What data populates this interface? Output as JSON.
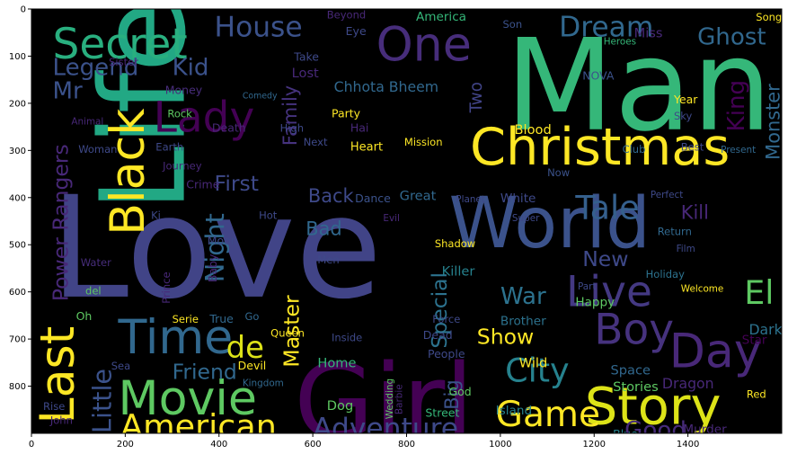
{
  "chart_data": {
    "type": "wordcloud",
    "title": "",
    "xlabel": "",
    "ylabel": "",
    "xlim": [
      0,
      1600
    ],
    "ylim": [
      900,
      0
    ],
    "x_ticks": [
      0,
      200,
      400,
      600,
      800,
      1000,
      1200,
      1400
    ],
    "y_ticks": [
      0,
      100,
      200,
      300,
      400,
      500,
      600,
      700,
      800
    ],
    "background": "#000000",
    "palette": "viridis",
    "words": [
      {
        "text": "Love",
        "x": 40,
        "y": 610,
        "size": 300,
        "color": "#414487"
      },
      {
        "text": "Man",
        "x": 1010,
        "y": 255,
        "size": 270,
        "color": "#35b779"
      },
      {
        "text": "Life",
        "x": 215,
        "y": 320,
        "size": 250,
        "color": "#22a884",
        "rotate": -90,
        "ax": 325,
        "ay": 430
      },
      {
        "text": "Girl",
        "x": 560,
        "y": 910,
        "size": 220,
        "color": "#440154"
      },
      {
        "text": "World",
        "x": 890,
        "y": 505,
        "size": 150,
        "color": "#3b528b"
      },
      {
        "text": "Christmas",
        "x": 935,
        "y": 330,
        "size": 110,
        "color": "#fde725"
      },
      {
        "text": "Story",
        "x": 1180,
        "y": 880,
        "size": 110,
        "color": "#dde318"
      },
      {
        "text": "Time",
        "x": 185,
        "y": 730,
        "size": 100,
        "color": "#31688e"
      },
      {
        "text": "Movie",
        "x": 185,
        "y": 860,
        "size": 100,
        "color": "#5ec962"
      },
      {
        "text": "Day",
        "x": 1360,
        "y": 760,
        "size": 100,
        "color": "#482878"
      },
      {
        "text": "One",
        "x": 735,
        "y": 110,
        "size": 100,
        "color": "#472d7b"
      },
      {
        "text": "Black",
        "x": 210,
        "y": 480,
        "size": 100,
        "color": "#fde725",
        "rotate": -90,
        "ax": 240,
        "ay": 480
      },
      {
        "text": "Last",
        "x": 55,
        "y": 880,
        "size": 100,
        "color": "#fde725",
        "rotate": -90,
        "ax": 90,
        "ay": 880
      },
      {
        "text": "Secret",
        "x": 45,
        "y": 105,
        "size": 90,
        "color": "#29af7f"
      },
      {
        "text": "Live",
        "x": 1140,
        "y": 630,
        "size": 90,
        "color": "#443983"
      },
      {
        "text": "Boy",
        "x": 1200,
        "y": 710,
        "size": 90,
        "color": "#46327e"
      },
      {
        "text": "Game",
        "x": 990,
        "y": 885,
        "size": 75,
        "color": "#fde725"
      },
      {
        "text": "American",
        "x": 190,
        "y": 910,
        "size": 70,
        "color": "#fde725"
      },
      {
        "text": "City",
        "x": 1010,
        "y": 790,
        "size": 70,
        "color": "#26828e"
      },
      {
        "text": "Tale",
        "x": 1160,
        "y": 445,
        "size": 70,
        "color": "#35608d"
      },
      {
        "text": "Adventure",
        "x": 600,
        "y": 910,
        "size": 60,
        "color": "#3e4989"
      },
      {
        "text": "House",
        "x": 390,
        "y": 58,
        "size": 60,
        "color": "#3b528b"
      },
      {
        "text": "Dream",
        "x": 1125,
        "y": 58,
        "size": 60,
        "color": "#31688e"
      },
      {
        "text": "El",
        "x": 1520,
        "y": 625,
        "size": 70,
        "color": "#5ec962"
      },
      {
        "text": "de",
        "x": 415,
        "y": 740,
        "size": 65,
        "color": "#dde318"
      },
      {
        "text": "Ghost",
        "x": 1420,
        "y": 75,
        "size": 50,
        "color": "#31688e"
      },
      {
        "text": "Good",
        "x": 1265,
        "y": 910,
        "size": 50,
        "color": "#472c7a"
      },
      {
        "text": "Lady",
        "x": 260,
        "y": 260,
        "size": 90,
        "color": "#440154"
      },
      {
        "text": "Kid",
        "x": 300,
        "y": 140,
        "size": 50,
        "color": "#3b528b"
      },
      {
        "text": "Legend",
        "x": 45,
        "y": 140,
        "size": 50,
        "color": "#3b528b"
      },
      {
        "text": "Mr",
        "x": 45,
        "y": 190,
        "size": 50,
        "color": "#3b528b"
      },
      {
        "text": "Friend",
        "x": 300,
        "y": 785,
        "size": 45,
        "color": "#31688e"
      },
      {
        "text": "War",
        "x": 1000,
        "y": 625,
        "size": 50,
        "color": "#2c728e"
      },
      {
        "text": "Show",
        "x": 950,
        "y": 710,
        "size": 45,
        "color": "#fde725"
      },
      {
        "text": "New",
        "x": 1175,
        "y": 545,
        "size": 45,
        "color": "#3e4989"
      },
      {
        "text": "First",
        "x": 390,
        "y": 385,
        "size": 45,
        "color": "#3e4989"
      },
      {
        "text": "Bad",
        "x": 585,
        "y": 480,
        "size": 40,
        "color": "#31688e"
      },
      {
        "text": "Kill",
        "x": 1385,
        "y": 445,
        "size": 40,
        "color": "#482878"
      },
      {
        "text": "Dark",
        "x": 1530,
        "y": 690,
        "size": 30,
        "color": "#2c728e"
      },
      {
        "text": "Chhota Bheem",
        "x": 645,
        "y": 175,
        "size": 30,
        "color": "#31688e"
      },
      {
        "text": "King",
        "x": 1480,
        "y": 260,
        "size": 50,
        "color": "#440154",
        "rotate": -90,
        "ax": 1520,
        "ay": 260
      },
      {
        "text": "Monster",
        "x": 1565,
        "y": 320,
        "size": 40,
        "color": "#31688e",
        "rotate": -90,
        "ax": 1595,
        "ay": 320
      },
      {
        "text": "Night",
        "x": 380,
        "y": 580,
        "size": 55,
        "color": "#31688e",
        "rotate": -90,
        "ax": 410,
        "ay": 580
      },
      {
        "text": "Little",
        "x": 140,
        "y": 900,
        "size": 55,
        "color": "#3b528b",
        "rotate": -90,
        "ax": 170,
        "ay": 900
      },
      {
        "text": "Power Rangers",
        "x": 58,
        "y": 620,
        "size": 45,
        "color": "#482878",
        "rotate": -90,
        "ax": 78,
        "ay": 620
      },
      {
        "text": "Master",
        "x": 545,
        "y": 760,
        "size": 45,
        "color": "#fde725",
        "rotate": -90,
        "ax": 570,
        "ay": 760
      },
      {
        "text": "Special",
        "x": 860,
        "y": 720,
        "size": 45,
        "color": "#2c728e",
        "rotate": -90,
        "ax": 885,
        "ay": 720
      },
      {
        "text": "Big",
        "x": 885,
        "y": 850,
        "size": 40,
        "color": "#3b528b",
        "rotate": -90,
        "ax": 910,
        "ay": 850
      },
      {
        "text": "Two",
        "x": 940,
        "y": 220,
        "size": 35,
        "color": "#414487",
        "rotate": -90,
        "ax": 960,
        "ay": 220
      },
      {
        "text": "Family",
        "x": 545,
        "y": 290,
        "size": 40,
        "color": "#46337f",
        "rotate": -90,
        "ax": 565,
        "ay": 290
      },
      {
        "text": "Back",
        "x": 590,
        "y": 410,
        "size": 40,
        "color": "#3e4989"
      },
      {
        "text": "Tale",
        "x": 0,
        "y": 0,
        "size": 0,
        "color": "#000000"
      },
      {
        "text": "Heart",
        "x": 680,
        "y": 300,
        "size": 25,
        "color": "#fde725"
      },
      {
        "text": "Great",
        "x": 785,
        "y": 405,
        "size": 28,
        "color": "#31688e"
      },
      {
        "text": "Blood",
        "x": 1030,
        "y": 265,
        "size": 28,
        "color": "#fde725"
      },
      {
        "text": "Killer",
        "x": 875,
        "y": 565,
        "size": 28,
        "color": "#26828e"
      },
      {
        "text": "Happy",
        "x": 1160,
        "y": 630,
        "size": 26,
        "color": "#5ec962"
      },
      {
        "text": "Brother",
        "x": 1000,
        "y": 670,
        "size": 26,
        "color": "#2c728e"
      },
      {
        "text": "Island",
        "x": 990,
        "y": 860,
        "size": 26,
        "color": "#26828e"
      },
      {
        "text": "Dragon",
        "x": 1345,
        "y": 805,
        "size": 30,
        "color": "#482878"
      },
      {
        "text": "Space",
        "x": 1235,
        "y": 775,
        "size": 28,
        "color": "#31688e"
      },
      {
        "text": "Stories",
        "x": 1240,
        "y": 810,
        "size": 28,
        "color": "#5ec962"
      },
      {
        "text": "Home",
        "x": 610,
        "y": 760,
        "size": 28,
        "color": "#35b779"
      },
      {
        "text": "Dog",
        "x": 630,
        "y": 850,
        "size": 28,
        "color": "#5ec962"
      },
      {
        "text": "Wild",
        "x": 1040,
        "y": 760,
        "size": 28,
        "color": "#fde725"
      },
      {
        "text": "People",
        "x": 845,
        "y": 740,
        "size": 24,
        "color": "#3e4989"
      },
      {
        "text": "Dead",
        "x": 835,
        "y": 700,
        "size": 24,
        "color": "#3e4989"
      },
      {
        "text": "Force",
        "x": 855,
        "y": 665,
        "size": 22,
        "color": "#3e4989"
      },
      {
        "text": "Journey",
        "x": 280,
        "y": 340,
        "size": 22,
        "color": "#482878"
      },
      {
        "text": "Crime",
        "x": 330,
        "y": 380,
        "size": 24,
        "color": "#482878"
      },
      {
        "text": "Earth",
        "x": 265,
        "y": 300,
        "size": 22,
        "color": "#3e4989"
      },
      {
        "text": "Death",
        "x": 385,
        "y": 260,
        "size": 24,
        "color": "#482878"
      },
      {
        "text": "Money",
        "x": 285,
        "y": 180,
        "size": 24,
        "color": "#472c7a"
      },
      {
        "text": "Party",
        "x": 640,
        "y": 230,
        "size": 24,
        "color": "#fde725"
      },
      {
        "text": "High",
        "x": 530,
        "y": 260,
        "size": 22,
        "color": "#3e4989"
      },
      {
        "text": "Mission",
        "x": 795,
        "y": 290,
        "size": 22,
        "color": "#fde725"
      },
      {
        "text": "Lost",
        "x": 555,
        "y": 145,
        "size": 28,
        "color": "#482878"
      },
      {
        "text": "Take",
        "x": 560,
        "y": 110,
        "size": 24,
        "color": "#3e4989"
      },
      {
        "text": "Eye",
        "x": 670,
        "y": 55,
        "size": 24,
        "color": "#3e4989"
      },
      {
        "text": "America",
        "x": 820,
        "y": 25,
        "size": 26,
        "color": "#35b779"
      },
      {
        "text": "Beyond",
        "x": 630,
        "y": 20,
        "size": 22,
        "color": "#482878"
      },
      {
        "text": "Miss",
        "x": 1285,
        "y": 60,
        "size": 28,
        "color": "#482878"
      },
      {
        "text": "Song",
        "x": 1545,
        "y": 25,
        "size": 22,
        "color": "#fde725"
      },
      {
        "text": "Heroes",
        "x": 1220,
        "y": 75,
        "size": 20,
        "color": "#35b779"
      },
      {
        "text": "NOVA",
        "x": 1175,
        "y": 150,
        "size": 24,
        "color": "#3b528b"
      },
      {
        "text": "Year",
        "x": 1370,
        "y": 200,
        "size": 24,
        "color": "#fde725"
      },
      {
        "text": "Sky",
        "x": 1370,
        "y": 235,
        "size": 22,
        "color": "#3e4989"
      },
      {
        "text": "Best",
        "x": 1385,
        "y": 300,
        "size": 22,
        "color": "#3e4989"
      },
      {
        "text": "Present",
        "x": 1470,
        "y": 305,
        "size": 20,
        "color": "#31688e"
      },
      {
        "text": "Club",
        "x": 1260,
        "y": 305,
        "size": 22,
        "color": "#31688e"
      },
      {
        "text": "Return",
        "x": 1335,
        "y": 480,
        "size": 22,
        "color": "#31688e"
      },
      {
        "text": "Film",
        "x": 1375,
        "y": 515,
        "size": 20,
        "color": "#3e4989"
      },
      {
        "text": "Holiday",
        "x": 1310,
        "y": 570,
        "size": 22,
        "color": "#2c728e"
      },
      {
        "text": "Welcome",
        "x": 1385,
        "y": 600,
        "size": 20,
        "color": "#fde725"
      },
      {
        "text": "Perfect",
        "x": 1320,
        "y": 400,
        "size": 20,
        "color": "#3e4989"
      },
      {
        "text": "Now",
        "x": 1100,
        "y": 355,
        "size": 22,
        "color": "#3b528b"
      },
      {
        "text": "White",
        "x": 1000,
        "y": 410,
        "size": 26,
        "color": "#3e4989"
      },
      {
        "text": "Planet",
        "x": 905,
        "y": 410,
        "size": 20,
        "color": "#3e4989"
      },
      {
        "text": "Super",
        "x": 1025,
        "y": 450,
        "size": 20,
        "color": "#3e4989"
      },
      {
        "text": "Dance",
        "x": 690,
        "y": 410,
        "size": 24,
        "color": "#3b528b"
      },
      {
        "text": "Evil",
        "x": 750,
        "y": 450,
        "size": 20,
        "color": "#482878"
      },
      {
        "text": "Shadow",
        "x": 860,
        "y": 505,
        "size": 22,
        "color": "#fde725"
      },
      {
        "text": "Men",
        "x": 610,
        "y": 540,
        "size": 22,
        "color": "#3e4989"
      },
      {
        "text": "Hot",
        "x": 485,
        "y": 445,
        "size": 22,
        "color": "#3e4989"
      },
      {
        "text": "Ki",
        "x": 255,
        "y": 445,
        "size": 22,
        "color": "#3e4989"
      },
      {
        "text": "Moon",
        "x": 375,
        "y": 500,
        "size": 24,
        "color": "#3e4989"
      },
      {
        "text": "Prince",
        "x": 285,
        "y": 625,
        "size": 22,
        "color": "#482878",
        "rotate": -90,
        "ax": 295,
        "ay": 625
      },
      {
        "text": "Baby",
        "x": 385,
        "y": 580,
        "size": 24,
        "color": "#482878",
        "rotate": -90,
        "ax": 395,
        "ay": 580
      },
      {
        "text": "Queen",
        "x": 510,
        "y": 695,
        "size": 22,
        "color": "#fde725"
      },
      {
        "text": "Devil",
        "x": 440,
        "y": 765,
        "size": 24,
        "color": "#fde725"
      },
      {
        "text": "Kingdom",
        "x": 450,
        "y": 800,
        "size": 20,
        "color": "#31688e"
      },
      {
        "text": "True",
        "x": 380,
        "y": 665,
        "size": 24,
        "color": "#31688e"
      },
      {
        "text": "Serie",
        "x": 300,
        "y": 665,
        "size": 22,
        "color": "#fde725"
      },
      {
        "text": "Go",
        "x": 455,
        "y": 660,
        "size": 22,
        "color": "#31688e"
      },
      {
        "text": "Oh",
        "x": 95,
        "y": 660,
        "size": 24,
        "color": "#5ec962"
      },
      {
        "text": "del",
        "x": 115,
        "y": 605,
        "size": 22,
        "color": "#5ec962"
      },
      {
        "text": "Water",
        "x": 105,
        "y": 545,
        "size": 22,
        "color": "#472d7b"
      },
      {
        "text": "Sea",
        "x": 170,
        "y": 765,
        "size": 22,
        "color": "#3e4989"
      },
      {
        "text": "Rise",
        "x": 25,
        "y": 850,
        "size": 22,
        "color": "#3e4989"
      },
      {
        "text": "John",
        "x": 40,
        "y": 880,
        "size": 22,
        "color": "#482878"
      },
      {
        "text": "Road",
        "x": 30,
        "y": 925,
        "size": 22,
        "color": "#5ec962"
      },
      {
        "text": "Woman",
        "x": 100,
        "y": 305,
        "size": 22,
        "color": "#3e4989"
      },
      {
        "text": "Animal",
        "x": 85,
        "y": 245,
        "size": 20,
        "color": "#482878"
      },
      {
        "text": "Sister",
        "x": 165,
        "y": 120,
        "size": 22,
        "color": "#482878"
      },
      {
        "text": "Rock",
        "x": 290,
        "y": 230,
        "size": 22,
        "color": "#5ec962"
      },
      {
        "text": "Comedy",
        "x": 450,
        "y": 190,
        "size": 18,
        "color": "#31688e"
      },
      {
        "text": "Hai",
        "x": 680,
        "y": 260,
        "size": 24,
        "color": "#482878"
      },
      {
        "text": "Next",
        "x": 580,
        "y": 290,
        "size": 22,
        "color": "#3e4989"
      },
      {
        "text": "Street",
        "x": 840,
        "y": 865,
        "size": 24,
        "color": "#35b779"
      },
      {
        "text": "God",
        "x": 890,
        "y": 820,
        "size": 24,
        "color": "#5ec962"
      },
      {
        "text": "Wedding",
        "x": 755,
        "y": 870,
        "size": 20,
        "color": "#5ec962",
        "rotate": -90,
        "ax": 770,
        "ay": 870
      },
      {
        "text": "Barbie",
        "x": 775,
        "y": 860,
        "size": 20,
        "color": "#482878",
        "rotate": -90,
        "ax": 790,
        "ay": 860
      },
      {
        "text": "Inside",
        "x": 640,
        "y": 705,
        "size": 22,
        "color": "#3e4989"
      },
      {
        "text": "Blue",
        "x": 1240,
        "y": 910,
        "size": 24,
        "color": "#26828e"
      },
      {
        "text": "Murder",
        "x": 1390,
        "y": 900,
        "size": 26,
        "color": "#482878"
      },
      {
        "text": "Battle",
        "x": 1420,
        "y": 930,
        "size": 24,
        "color": "#472d7b"
      },
      {
        "text": "Red",
        "x": 1525,
        "y": 825,
        "size": 22,
        "color": "#fde725"
      },
      {
        "text": "Star",
        "x": 1515,
        "y": 710,
        "size": 26,
        "color": "#440154"
      },
      {
        "text": "Alien",
        "x": 1525,
        "y": 935,
        "size": 18,
        "color": "#fde725"
      },
      {
        "text": "Part",
        "x": 1165,
        "y": 595,
        "size": 20,
        "color": "#3e4989"
      },
      {
        "text": "Son",
        "x": 1005,
        "y": 40,
        "size": 22,
        "color": "#3b528b"
      }
    ]
  }
}
